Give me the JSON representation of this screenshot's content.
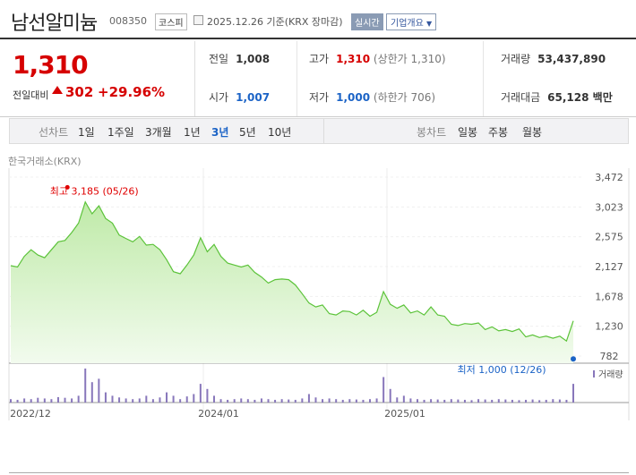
{
  "header": {
    "name": "남선알미늄",
    "code": "008350",
    "market": "코스피",
    "date": "2025.12.26",
    "basis": "기준(KRX 장마감)",
    "realtime_label": "실시간",
    "company_info_label": "기업개요"
  },
  "price": {
    "current": "1,310",
    "change_label": "전일대비",
    "change": "302",
    "rate": "+29.96%",
    "color": "#d60000"
  },
  "stats": {
    "prev_close_label": "전일",
    "prev_close": "1,008",
    "high_label": "고가",
    "high": "1,310",
    "high_sub": "(상한가 1,310)",
    "volume_label": "거래량",
    "volume": "53,437,890",
    "open_label": "시가",
    "open": "1,007",
    "low_label": "저가",
    "low": "1,000",
    "low_sub": "(하한가 706)",
    "amount_label": "거래대금",
    "amount": "65,128 백만"
  },
  "periods": {
    "label": "선차트",
    "items": [
      "1일",
      "1주일",
      "3개월",
      "1년",
      "3년",
      "5년",
      "10년"
    ],
    "active": "3년",
    "candle_label": "봉차트",
    "candle_items": [
      "일봉",
      "주봉",
      "월봉"
    ]
  },
  "chart_data": {
    "type": "area",
    "source": "한국거래소(KRX)",
    "y_ticks": [
      "3,472",
      "3,023",
      "2,575",
      "2,127",
      "1,678",
      "1,230",
      "782"
    ],
    "ylim": [
      782,
      3472
    ],
    "x_ticks": [
      "2022/12",
      "2024/01",
      "2025/01"
    ],
    "high_label": "최고 3,185 (05/26)",
    "low_label": "최저 1,000 (12/26)",
    "volume_label": "거래량",
    "series": [
      {
        "x": 0,
        "y": 2140
      },
      {
        "x": 1,
        "y": 2120
      },
      {
        "x": 2,
        "y": 2280
      },
      {
        "x": 3,
        "y": 2380
      },
      {
        "x": 4,
        "y": 2300
      },
      {
        "x": 5,
        "y": 2260
      },
      {
        "x": 6,
        "y": 2380
      },
      {
        "x": 7,
        "y": 2500
      },
      {
        "x": 8,
        "y": 2520
      },
      {
        "x": 9,
        "y": 2640
      },
      {
        "x": 10,
        "y": 2780
      },
      {
        "x": 11,
        "y": 3100
      },
      {
        "x": 12,
        "y": 2920
      },
      {
        "x": 13,
        "y": 3040
      },
      {
        "x": 14,
        "y": 2850
      },
      {
        "x": 15,
        "y": 2780
      },
      {
        "x": 16,
        "y": 2600
      },
      {
        "x": 17,
        "y": 2550
      },
      {
        "x": 18,
        "y": 2500
      },
      {
        "x": 19,
        "y": 2580
      },
      {
        "x": 20,
        "y": 2450
      },
      {
        "x": 21,
        "y": 2460
      },
      {
        "x": 22,
        "y": 2380
      },
      {
        "x": 23,
        "y": 2230
      },
      {
        "x": 24,
        "y": 2050
      },
      {
        "x": 25,
        "y": 2020
      },
      {
        "x": 26,
        "y": 2150
      },
      {
        "x": 27,
        "y": 2300
      },
      {
        "x": 28,
        "y": 2560
      },
      {
        "x": 29,
        "y": 2350
      },
      {
        "x": 30,
        "y": 2460
      },
      {
        "x": 31,
        "y": 2280
      },
      {
        "x": 32,
        "y": 2180
      },
      {
        "x": 33,
        "y": 2150
      },
      {
        "x": 34,
        "y": 2120
      },
      {
        "x": 35,
        "y": 2150
      },
      {
        "x": 36,
        "y": 2040
      },
      {
        "x": 37,
        "y": 1970
      },
      {
        "x": 38,
        "y": 1880
      },
      {
        "x": 39,
        "y": 1930
      },
      {
        "x": 40,
        "y": 1940
      },
      {
        "x": 41,
        "y": 1930
      },
      {
        "x": 42,
        "y": 1850
      },
      {
        "x": 43,
        "y": 1720
      },
      {
        "x": 44,
        "y": 1580
      },
      {
        "x": 45,
        "y": 1520
      },
      {
        "x": 46,
        "y": 1550
      },
      {
        "x": 47,
        "y": 1420
      },
      {
        "x": 48,
        "y": 1400
      },
      {
        "x": 49,
        "y": 1460
      },
      {
        "x": 50,
        "y": 1450
      },
      {
        "x": 51,
        "y": 1400
      },
      {
        "x": 52,
        "y": 1470
      },
      {
        "x": 53,
        "y": 1380
      },
      {
        "x": 54,
        "y": 1440
      },
      {
        "x": 55,
        "y": 1750
      },
      {
        "x": 56,
        "y": 1560
      },
      {
        "x": 57,
        "y": 1500
      },
      {
        "x": 58,
        "y": 1550
      },
      {
        "x": 59,
        "y": 1430
      },
      {
        "x": 60,
        "y": 1460
      },
      {
        "x": 61,
        "y": 1400
      },
      {
        "x": 62,
        "y": 1520
      },
      {
        "x": 63,
        "y": 1400
      },
      {
        "x": 64,
        "y": 1380
      },
      {
        "x": 65,
        "y": 1260
      },
      {
        "x": 66,
        "y": 1240
      },
      {
        "x": 67,
        "y": 1270
      },
      {
        "x": 68,
        "y": 1260
      },
      {
        "x": 69,
        "y": 1280
      },
      {
        "x": 70,
        "y": 1180
      },
      {
        "x": 71,
        "y": 1220
      },
      {
        "x": 72,
        "y": 1160
      },
      {
        "x": 73,
        "y": 1180
      },
      {
        "x": 74,
        "y": 1150
      },
      {
        "x": 75,
        "y": 1190
      },
      {
        "x": 76,
        "y": 1070
      },
      {
        "x": 77,
        "y": 1100
      },
      {
        "x": 78,
        "y": 1060
      },
      {
        "x": 79,
        "y": 1080
      },
      {
        "x": 80,
        "y": 1050
      },
      {
        "x": 81,
        "y": 1080
      },
      {
        "x": 82,
        "y": 1008
      },
      {
        "x": 83,
        "y": 1310
      }
    ],
    "high_index": 11,
    "low_index": 82,
    "volume": [
      0.1,
      0.08,
      0.12,
      0.1,
      0.14,
      0.12,
      0.1,
      0.16,
      0.14,
      0.12,
      0.2,
      1.0,
      0.6,
      0.7,
      0.3,
      0.2,
      0.15,
      0.12,
      0.1,
      0.12,
      0.2,
      0.1,
      0.15,
      0.3,
      0.2,
      0.1,
      0.18,
      0.25,
      0.55,
      0.4,
      0.2,
      0.1,
      0.08,
      0.1,
      0.12,
      0.1,
      0.08,
      0.12,
      0.1,
      0.08,
      0.1,
      0.09,
      0.08,
      0.12,
      0.25,
      0.15,
      0.1,
      0.12,
      0.1,
      0.08,
      0.1,
      0.09,
      0.08,
      0.1,
      0.12,
      0.75,
      0.4,
      0.15,
      0.2,
      0.12,
      0.1,
      0.08,
      0.1,
      0.09,
      0.08,
      0.1,
      0.09,
      0.08,
      0.07,
      0.1,
      0.09,
      0.08,
      0.1,
      0.09,
      0.08,
      0.07,
      0.08,
      0.09,
      0.07,
      0.08,
      0.1,
      0.09,
      0.08,
      0.55
    ],
    "colors": {
      "line": "#5cc33a",
      "fill_top": "#bfeaa8",
      "fill_bottom": "#f2fbee",
      "volume": "#8877bb",
      "high": "#e00000",
      "low": "#1b63c6"
    }
  }
}
